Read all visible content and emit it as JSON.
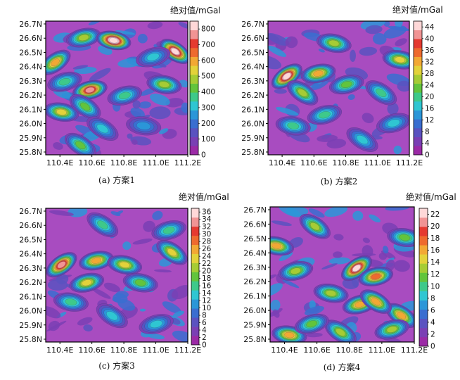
{
  "chart_data": [
    {
      "type": "heatmap",
      "caption": "(a) 方案1",
      "unit_label": "绝对值/mGal",
      "x_ticks": [
        "110.4E",
        "110.6E",
        "110.8E",
        "111.0E",
        "111.2E"
      ],
      "y_ticks": [
        "26.7N",
        "26.6N",
        "26.5N",
        "26.4N",
        "26.3N",
        "26.2N",
        "26.1N",
        "26.0N",
        "25.9N",
        "25.8N"
      ],
      "colorbar_ticks": [
        "800",
        "700",
        "600",
        "500",
        "400",
        "300",
        "200",
        "100",
        "0"
      ],
      "colorbar_range": [
        0,
        850
      ],
      "hotspots": [
        {
          "lon": 110.36,
          "lat": 26.44,
          "value": 560
        },
        {
          "lon": 110.54,
          "lat": 26.62,
          "value": 420
        },
        {
          "lon": 110.73,
          "lat": 26.6,
          "value": 820
        },
        {
          "lon": 111.12,
          "lat": 26.52,
          "value": 760
        },
        {
          "lon": 110.58,
          "lat": 26.24,
          "value": 680
        },
        {
          "lon": 110.4,
          "lat": 26.08,
          "value": 480
        },
        {
          "lon": 110.55,
          "lat": 26.12,
          "value": 360
        },
        {
          "lon": 110.8,
          "lat": 26.2,
          "value": 330
        },
        {
          "lon": 111.05,
          "lat": 26.28,
          "value": 400
        },
        {
          "lon": 110.52,
          "lat": 25.84,
          "value": 380
        },
        {
          "lon": 110.42,
          "lat": 26.3,
          "value": 300
        },
        {
          "lon": 110.92,
          "lat": 25.98,
          "value": 220
        },
        {
          "lon": 110.66,
          "lat": 25.96,
          "value": 260
        },
        {
          "lon": 110.98,
          "lat": 26.48,
          "value": 260
        }
      ]
    },
    {
      "type": "heatmap",
      "caption": "(b) 方案2",
      "unit_label": "绝对值/mGal",
      "x_ticks": [
        "110.4E",
        "110.6E",
        "110.8E",
        "111.0E",
        "111.2E"
      ],
      "y_ticks": [
        "26.7N",
        "26.6N",
        "26.5N",
        "26.4N",
        "26.3N",
        "26.2N",
        "26.1N",
        "26.0N",
        "25.9N",
        "25.8N"
      ],
      "colorbar_ticks": [
        "44",
        "40",
        "36",
        "32",
        "28",
        "24",
        "20",
        "16",
        "12",
        "8",
        "4",
        "0"
      ],
      "colorbar_range": [
        0,
        46
      ],
      "hotspots": [
        {
          "lon": 110.42,
          "lat": 26.34,
          "value": 40
        },
        {
          "lon": 110.62,
          "lat": 26.36,
          "value": 28
        },
        {
          "lon": 110.72,
          "lat": 26.58,
          "value": 24
        },
        {
          "lon": 110.52,
          "lat": 26.22,
          "value": 24
        },
        {
          "lon": 110.8,
          "lat": 26.28,
          "value": 20
        },
        {
          "lon": 111.14,
          "lat": 26.46,
          "value": 26
        },
        {
          "lon": 111.02,
          "lat": 26.22,
          "value": 18
        },
        {
          "lon": 110.66,
          "lat": 26.06,
          "value": 18
        },
        {
          "lon": 110.46,
          "lat": 25.98,
          "value": 16
        },
        {
          "lon": 110.9,
          "lat": 25.88,
          "value": 14
        },
        {
          "lon": 111.1,
          "lat": 26.0,
          "value": 14
        }
      ]
    },
    {
      "type": "heatmap",
      "caption": "(c) 方案3",
      "unit_label": "绝对值/mGal",
      "x_ticks": [
        "110.4E",
        "110.6E",
        "110.8E",
        "111.0E",
        "111.2E"
      ],
      "y_ticks": [
        "26.7N",
        "26.6N",
        "26.5N",
        "26.4N",
        "26.3N",
        "26.2N",
        "26.1N",
        "26.0N",
        "25.9N",
        "25.8N"
      ],
      "colorbar_ticks": [
        "36",
        "34",
        "32",
        "30",
        "28",
        "26",
        "24",
        "22",
        "20",
        "18",
        "16",
        "14",
        "12",
        "10",
        "8",
        "6",
        "4",
        "2",
        "0"
      ],
      "colorbar_range": [
        0,
        37
      ],
      "hotspots": [
        {
          "lon": 110.4,
          "lat": 26.33,
          "value": 32
        },
        {
          "lon": 110.62,
          "lat": 26.36,
          "value": 24
        },
        {
          "lon": 110.8,
          "lat": 26.33,
          "value": 22
        },
        {
          "lon": 111.1,
          "lat": 26.42,
          "value": 22
        },
        {
          "lon": 110.56,
          "lat": 26.2,
          "value": 20
        },
        {
          "lon": 110.9,
          "lat": 26.2,
          "value": 16
        },
        {
          "lon": 110.66,
          "lat": 26.62,
          "value": 14
        },
        {
          "lon": 111.08,
          "lat": 26.58,
          "value": 14
        },
        {
          "lon": 110.46,
          "lat": 26.06,
          "value": 14
        },
        {
          "lon": 110.72,
          "lat": 25.96,
          "value": 12
        },
        {
          "lon": 111.0,
          "lat": 25.9,
          "value": 12
        }
      ]
    },
    {
      "type": "heatmap",
      "caption": "(d) 方案4",
      "unit_label": "绝对值/mGal",
      "x_ticks": [
        "110.4E",
        "110.6E",
        "110.8E",
        "111.0E",
        "111.2E"
      ],
      "y_ticks": [
        "26.7N",
        "26.6N",
        "26.5N",
        "26.4N",
        "26.3N",
        "26.2N",
        "26.1N",
        "26.0N",
        "25.9N",
        "25.8N"
      ],
      "colorbar_ticks": [
        "22",
        "20",
        "18",
        "16",
        "14",
        "12",
        "10",
        "8",
        "6",
        "4",
        "2",
        "0"
      ],
      "colorbar_range": [
        0,
        23
      ],
      "hotspots": [
        {
          "lon": 110.84,
          "lat": 26.3,
          "value": 20
        },
        {
          "lon": 110.96,
          "lat": 26.24,
          "value": 16
        },
        {
          "lon": 110.34,
          "lat": 26.46,
          "value": 14
        },
        {
          "lon": 110.58,
          "lat": 26.6,
          "value": 12
        },
        {
          "lon": 110.46,
          "lat": 26.28,
          "value": 12
        },
        {
          "lon": 110.68,
          "lat": 26.12,
          "value": 12
        },
        {
          "lon": 111.12,
          "lat": 25.96,
          "value": 14
        },
        {
          "lon": 110.86,
          "lat": 26.04,
          "value": 14
        },
        {
          "lon": 110.42,
          "lat": 25.82,
          "value": 14
        },
        {
          "lon": 110.74,
          "lat": 25.84,
          "value": 12
        },
        {
          "lon": 111.06,
          "lat": 25.86,
          "value": 12
        },
        {
          "lon": 111.14,
          "lat": 26.52,
          "value": 10
        },
        {
          "lon": 110.96,
          "lat": 26.06,
          "value": 14
        },
        {
          "lon": 110.56,
          "lat": 25.9,
          "value": 10
        }
      ]
    }
  ],
  "colors": {
    "palette": [
      "#9b2aa6",
      "#7a3fb4",
      "#5a52c0",
      "#3a6ed0",
      "#2b96d8",
      "#2fc6d2",
      "#3ec98a",
      "#62c43c",
      "#a6cc34",
      "#e3d23a",
      "#f2a834",
      "#ee6a2e",
      "#e53a30",
      "#f19494",
      "#ffd8d8"
    ],
    "background": "#a84cc0",
    "frame": "#000000"
  }
}
